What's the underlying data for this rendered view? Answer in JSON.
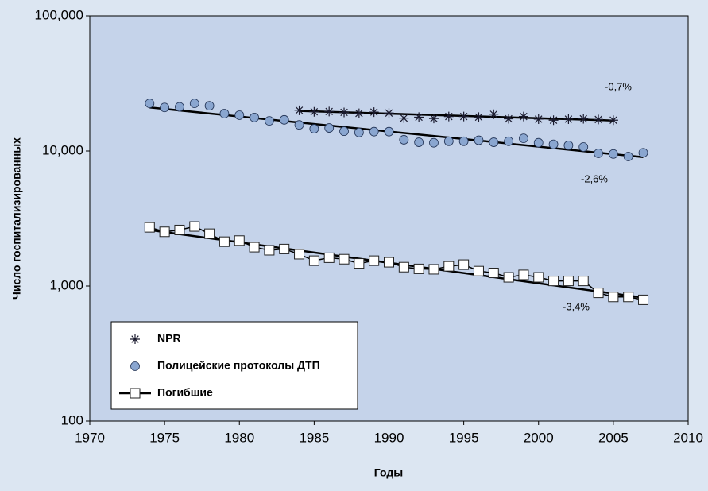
{
  "chart_data": {
    "type": "scatter",
    "y_label": "Число госпитализированных",
    "x_label": "Годы",
    "log_scale_y": true,
    "legend": "lower left",
    "xlim": [
      1970,
      2010
    ],
    "xticks": [
      1970,
      1975,
      1980,
      1985,
      1990,
      1995,
      2000,
      2005,
      2010
    ],
    "ylim": [
      100,
      100000
    ],
    "yticks": [
      100,
      {
        "value": 1000,
        "label": "1,000"
      },
      {
        "value": 10000,
        "label": "10,000"
      },
      {
        "value": 100000,
        "label": "100,000"
      }
    ],
    "series": [
      {
        "name": "NPR",
        "color": "#1a1a2e",
        "marker": "asterisk",
        "x": [
          1984,
          1985,
          1986,
          1987,
          1988,
          1989,
          1990,
          1991,
          1992,
          1993,
          1994,
          1995,
          1996,
          1997,
          1998,
          1999,
          2000,
          2001,
          2002,
          2003,
          2004,
          2005
        ],
        "values": [
          20000,
          19500,
          19600,
          19300,
          19000,
          19400,
          19100,
          17500,
          17800,
          17400,
          18000,
          18000,
          17800,
          18700,
          17300,
          18000,
          17200,
          16900,
          17200,
          17300,
          17100,
          16900
        ]
      },
      {
        "name": "Полицейские протоколы ДТП",
        "color": "#8aa6d0",
        "marker": "circle",
        "x": [
          1974,
          1975,
          1976,
          1977,
          1978,
          1979,
          1980,
          1981,
          1982,
          1983,
          1984,
          1985,
          1986,
          1987,
          1988,
          1989,
          1990,
          1991,
          1992,
          1993,
          1994,
          1995,
          1996,
          1997,
          1998,
          1999,
          2000,
          2001,
          2002,
          2003,
          2004,
          2005,
          2006,
          2007
        ],
        "values": [
          22500,
          21000,
          21200,
          22500,
          21600,
          18900,
          18400,
          17700,
          16700,
          17000,
          15600,
          14600,
          14800,
          14000,
          13700,
          13900,
          13900,
          12100,
          11600,
          11500,
          11800,
          11800,
          12000,
          11600,
          11800,
          12400,
          11500,
          11200,
          11000,
          10700,
          9600,
          9500,
          9100,
          9700
        ]
      },
      {
        "name": "Погибшие",
        "color": "#ffffff",
        "marker": "square",
        "line": true,
        "x": [
          1974,
          1975,
          1976,
          1977,
          1978,
          1979,
          1980,
          1981,
          1982,
          1983,
          1984,
          1985,
          1986,
          1987,
          1988,
          1989,
          1990,
          1991,
          1992,
          1993,
          1994,
          1995,
          1996,
          1997,
          1998,
          1999,
          2000,
          2001,
          2002,
          2003,
          2004,
          2005,
          2006,
          2007
        ],
        "values": [
          2720,
          2520,
          2600,
          2760,
          2440,
          2130,
          2170,
          1940,
          1840,
          1880,
          1720,
          1540,
          1620,
          1580,
          1470,
          1540,
          1500,
          1380,
          1340,
          1330,
          1400,
          1440,
          1290,
          1250,
          1160,
          1210,
          1160,
          1090,
          1090,
          1090,
          890,
          830,
          830,
          790
        ]
      }
    ],
    "trendlines": [
      {
        "x": [
          1984,
          2005
        ],
        "values": [
          19800,
          16800
        ]
      },
      {
        "x": [
          1974,
          2007
        ],
        "values": [
          21000,
          9000
        ]
      },
      {
        "x": [
          1974,
          2007
        ],
        "values": [
          2600,
          820
        ]
      }
    ],
    "annotations": [
      "-0,7%",
      "-2,6%",
      "-3,4%"
    ]
  }
}
